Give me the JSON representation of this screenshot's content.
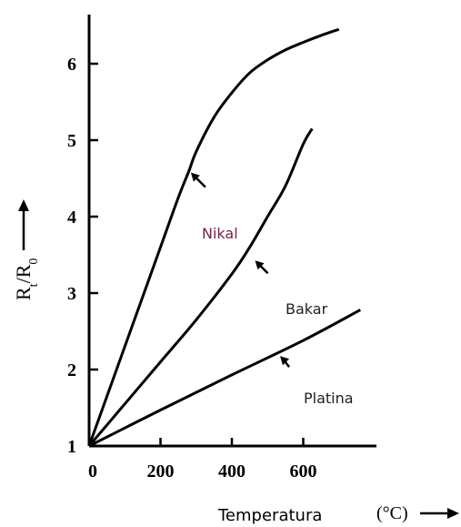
{
  "chart_data": {
    "type": "line",
    "title": "",
    "xlabel": "Temperatura",
    "xunit": "(°C)",
    "ylabel": "Rt/R0",
    "xlim": [
      0,
      800
    ],
    "ylim": [
      1,
      6.6
    ],
    "xticks": [
      "0",
      "200",
      "400",
      "600"
    ],
    "yticks": [
      "1",
      "2",
      "3",
      "4",
      "5",
      "6"
    ],
    "grid": false,
    "series": [
      {
        "name": "Nikal",
        "x": [
          0,
          50,
          100,
          150,
          200,
          250,
          280,
          300,
          350,
          400,
          450,
          500,
          550,
          600,
          650,
          700
        ],
        "y": [
          1.0,
          1.65,
          2.3,
          2.95,
          3.6,
          4.25,
          4.6,
          4.85,
          5.3,
          5.62,
          5.88,
          6.05,
          6.18,
          6.28,
          6.37,
          6.45
        ]
      },
      {
        "name": "Bakar",
        "x": [
          0,
          100,
          200,
          300,
          400,
          450,
          500,
          550,
          600,
          625
        ],
        "y": [
          1.0,
          1.55,
          2.1,
          2.65,
          3.25,
          3.6,
          4.0,
          4.4,
          4.95,
          5.15
        ]
      },
      {
        "name": "Platina",
        "x": [
          0,
          200,
          400,
          600,
          760
        ],
        "y": [
          1.0,
          1.47,
          1.93,
          2.38,
          2.78
        ]
      }
    ],
    "annotations": [
      {
        "label": "Nikal",
        "at_x": 280,
        "at_y": 4.6
      },
      {
        "label": "Bakar",
        "at_x": 460,
        "at_y": 3.45
      },
      {
        "label": "Platina",
        "at_x": 530,
        "at_y": 2.2
      }
    ]
  }
}
